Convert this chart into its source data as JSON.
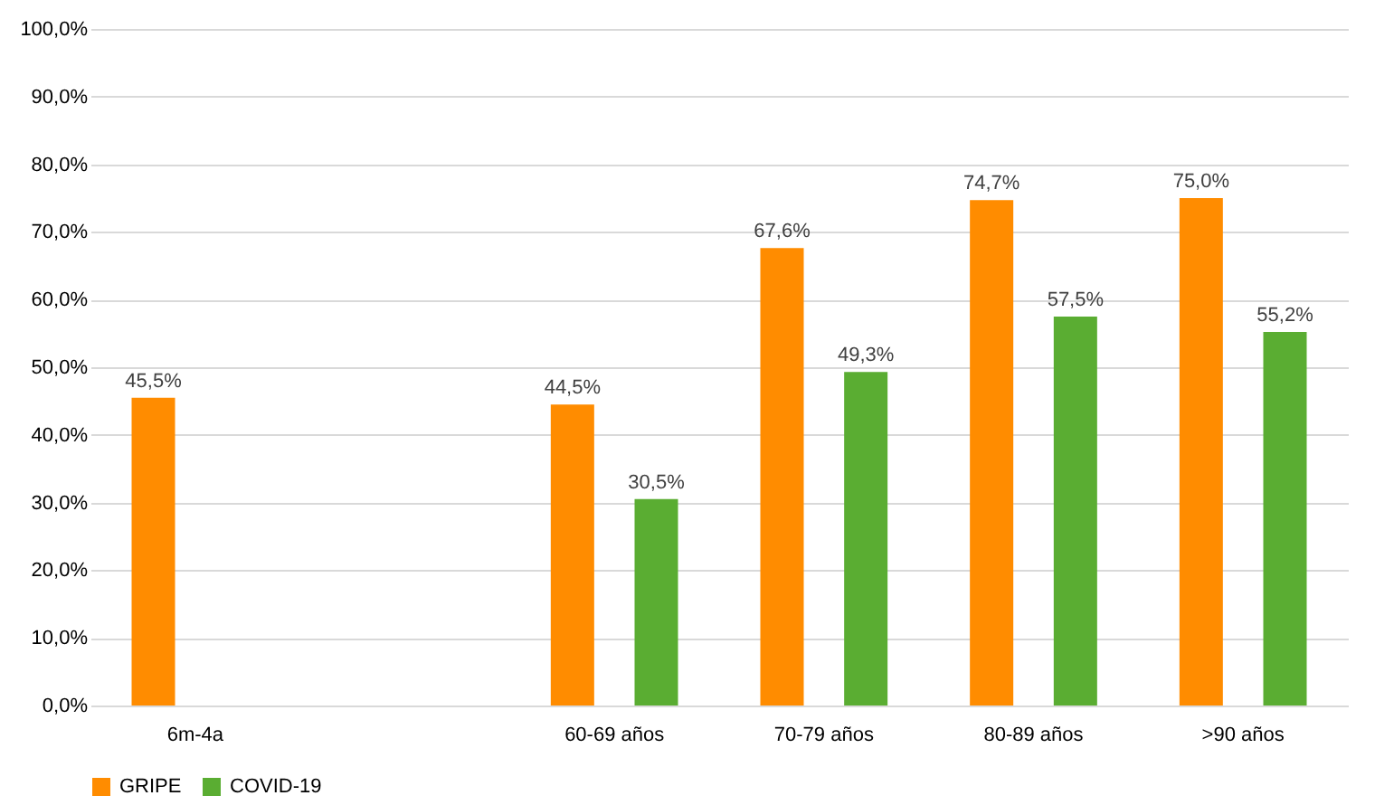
{
  "chart_data": {
    "type": "bar",
    "categories": [
      "6m-4a",
      null,
      "60-69 años",
      "70-79 años",
      "80-89 años",
      ">90 años"
    ],
    "series": [
      {
        "name": "GRIPE",
        "color": "#ff8c00",
        "values": [
          45.5,
          null,
          44.5,
          67.6,
          74.7,
          75.0
        ],
        "value_labels": [
          "45,5%",
          null,
          "44,5%",
          "67,6%",
          "74,7%",
          "75,0%"
        ]
      },
      {
        "name": "COVID-19",
        "color": "#5aad32",
        "values": [
          null,
          null,
          30.5,
          49.3,
          57.5,
          55.2
        ],
        "value_labels": [
          null,
          null,
          "30,5%",
          "49,3%",
          "57,5%",
          "55,2%"
        ]
      }
    ],
    "ylim": [
      0,
      100
    ],
    "yticks": [
      {
        "value": 0,
        "label": "0,0%"
      },
      {
        "value": 10,
        "label": "10,0%"
      },
      {
        "value": 20,
        "label": "20,0%"
      },
      {
        "value": 30,
        "label": "30,0%"
      },
      {
        "value": 40,
        "label": "40,0%"
      },
      {
        "value": 50,
        "label": "50,0%"
      },
      {
        "value": 60,
        "label": "60,0%"
      },
      {
        "value": 70,
        "label": "70,0%"
      },
      {
        "value": 80,
        "label": "80,0%"
      },
      {
        "value": 90,
        "label": "90,0%"
      },
      {
        "value": 100,
        "label": "100,0%"
      }
    ],
    "grid": "y",
    "legend": "bottom"
  }
}
